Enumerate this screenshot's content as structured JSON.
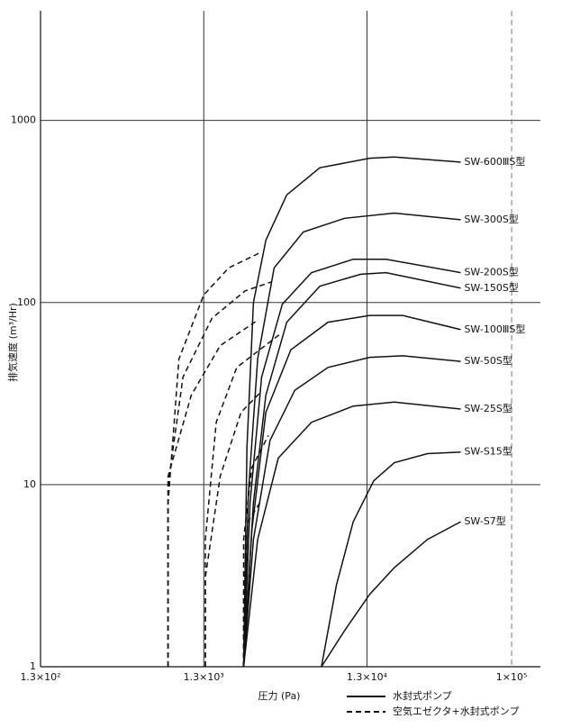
{
  "chart_data": {
    "type": "line",
    "x_label": "圧力 (Pa)",
    "y_label": "排気速度 (m³/Hr)",
    "x_log": true,
    "y_log": true,
    "grid": true,
    "color": "#111",
    "xlim": [
      130,
      150000
    ],
    "ylim": [
      1,
      4000
    ],
    "xticks": [
      {
        "value": 130,
        "label": "1.3×10²"
      },
      {
        "value": 1300,
        "label": "1.3×10³"
      },
      {
        "value": 13000,
        "label": "1.3×10⁴"
      },
      {
        "value": 100000,
        "label": "1×10⁵"
      }
    ],
    "yticks": [
      1,
      10,
      100,
      1000
    ],
    "legend": [
      {
        "label": "水封式ポンプ",
        "style": "solid"
      },
      {
        "label": "空気エゼクタ+水封式ポンプ",
        "style": "dashed"
      }
    ],
    "series": [
      {
        "label": "SW-600ⅢS型",
        "style": "solid",
        "x": [
          2280,
          2390,
          2620,
          3120,
          4190,
          6680,
          13500,
          19100,
          48700
        ],
        "values": [
          1,
          16,
          100,
          220,
          390,
          550,
          620,
          630,
          590
        ]
      },
      {
        "label": "SW-300S型",
        "style": "solid",
        "x": [
          2280,
          2440,
          2780,
          3510,
          5290,
          9480,
          19100,
          48700
        ],
        "values": [
          1,
          9,
          49,
          155,
          244,
          290,
          310,
          285
        ]
      },
      {
        "label": "SW-200S型",
        "style": "solid",
        "x": [
          2280,
          2500,
          2940,
          3940,
          5940,
          10700,
          17000,
          48700
        ],
        "values": [
          1,
          8,
          39,
          98,
          146,
          173,
          173,
          146
        ]
      },
      {
        "label": "SW-150S型",
        "style": "solid",
        "x": [
          2280,
          2620,
          3120,
          4190,
          6680,
          11900,
          17000,
          48700
        ],
        "values": [
          1,
          8,
          31,
          78,
          123,
          143,
          146,
          120
        ]
      },
      {
        "label": "SW-100ⅢS型",
        "style": "solid",
        "x": [
          2280,
          2560,
          3120,
          4440,
          7500,
          13500,
          21500,
          48700
        ],
        "values": [
          1,
          5.6,
          25,
          55,
          78,
          85,
          85,
          71
        ]
      },
      {
        "label": "SW-50S型",
        "style": "solid",
        "x": [
          2280,
          2620,
          3310,
          4700,
          7500,
          13500,
          21500,
          48700
        ],
        "values": [
          1,
          5,
          17.5,
          33,
          44,
          50,
          51,
          47.5
        ]
      },
      {
        "label": "SW-25S型",
        "style": "solid",
        "x": [
          2280,
          2780,
          3720,
          5940,
          10700,
          19100,
          48700
        ],
        "values": [
          1,
          5,
          14,
          22,
          27,
          28.4,
          26
        ]
      },
      {
        "label": "SW-S15型",
        "style": "solid",
        "x": [
          6840,
          8440,
          10700,
          14300,
          19100,
          30500,
          48700
        ],
        "values": [
          1,
          2.8,
          6.25,
          10.5,
          13.2,
          14.8,
          15.1
        ]
      },
      {
        "label": "SW-S7型",
        "style": "solid",
        "x": [
          6840,
          9480,
          13500,
          19100,
          30500,
          48700
        ],
        "values": [
          1,
          1.58,
          2.5,
          3.5,
          5,
          6.25
        ]
      },
      {
        "style": "dashed",
        "x": [
          786,
          786,
          916,
          1300,
          1850,
          2880
        ],
        "values": [
          1,
          7.9,
          49,
          110,
          155,
          188
        ]
      },
      {
        "style": "dashed",
        "x": [
          786,
          786,
          970,
          1460,
          2330,
          3390
        ],
        "values": [
          1,
          10,
          39,
          82,
          116,
          130
        ]
      },
      {
        "style": "dashed",
        "x": [
          786,
          786,
          1090,
          1640,
          2780
        ],
        "values": [
          1,
          11.1,
          31,
          58,
          80
        ]
      },
      {
        "style": "dashed",
        "x": [
          1330,
          1330,
          1550,
          2070,
          3810
        ],
        "values": [
          1,
          5,
          22,
          44,
          67
        ]
      },
      {
        "style": "dashed",
        "x": [
          1330,
          1330,
          1640,
          2200,
          2880
        ],
        "values": [
          1,
          3.1,
          11.1,
          25,
          32
        ]
      },
      {
        "style": "dashed",
        "x": [
          2280,
          2280,
          2560,
          3230
        ],
        "values": [
          1,
          5,
          12.4,
          18.6
        ]
      },
      {
        "style": "dashed",
        "x": [
          2280,
          2280,
          2420,
          2880
        ],
        "values": [
          1,
          2.5,
          6.25,
          8
        ]
      }
    ]
  }
}
